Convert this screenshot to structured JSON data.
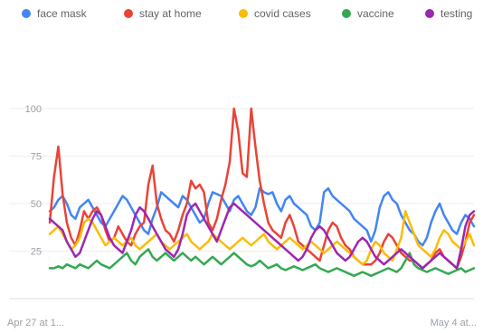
{
  "legend": {
    "items": [
      {
        "label": "face mask",
        "color": "#4285f4"
      },
      {
        "label": "stay at home",
        "color": "#ea4335"
      },
      {
        "label": "covid cases",
        "color": "#fbbc04"
      },
      {
        "label": "vaccine",
        "color": "#34a853"
      },
      {
        "label": "testing",
        "color": "#9c27b0"
      }
    ]
  },
  "chart_data": {
    "type": "line",
    "title": "",
    "xlabel": "",
    "ylabel": "",
    "ylim": [
      0,
      100
    ],
    "yticks": [
      "100",
      "75",
      "50",
      "25"
    ],
    "x_start_label": "Apr 27 at 1...",
    "x_end_label": "May 4 at...",
    "grid": true,
    "legend_position": "top",
    "series": [
      {
        "name": "face mask",
        "color": "#4285f4",
        "values": [
          46,
          48,
          52,
          54,
          50,
          44,
          42,
          48,
          50,
          52,
          48,
          44,
          40,
          38,
          42,
          46,
          50,
          54,
          52,
          48,
          44,
          40,
          36,
          34,
          42,
          48,
          56,
          54,
          52,
          50,
          48,
          54,
          52,
          48,
          44,
          40,
          42,
          50,
          56,
          55,
          54,
          50,
          46,
          52,
          54,
          50,
          46,
          44,
          48,
          58,
          56,
          55,
          56,
          50,
          46,
          52,
          54,
          50,
          48,
          46,
          44,
          38,
          36,
          40,
          56,
          58,
          54,
          52,
          50,
          48,
          46,
          42,
          40,
          38,
          36,
          30,
          36,
          48,
          54,
          56,
          52,
          50,
          44,
          40,
          36,
          34,
          30,
          28,
          32,
          40,
          46,
          50,
          44,
          40,
          36,
          34,
          40,
          44,
          42,
          38
        ]
      },
      {
        "name": "stay at home",
        "color": "#ea4335",
        "values": [
          40,
          64,
          80,
          55,
          40,
          32,
          28,
          36,
          46,
          42,
          46,
          48,
          44,
          36,
          30,
          32,
          38,
          34,
          30,
          28,
          34,
          38,
          40,
          60,
          70,
          50,
          42,
          36,
          34,
          30,
          36,
          44,
          50,
          62,
          58,
          60,
          56,
          40,
          36,
          42,
          52,
          60,
          72,
          100,
          88,
          66,
          64,
          100,
          80,
          62,
          50,
          40,
          36,
          34,
          32,
          40,
          44,
          38,
          30,
          28,
          26,
          24,
          22,
          20,
          28,
          36,
          40,
          38,
          32,
          28,
          26,
          22,
          20,
          18,
          18,
          18,
          20,
          24,
          30,
          34,
          32,
          28,
          24,
          22,
          20,
          20,
          18,
          16,
          18,
          20,
          24,
          26,
          22,
          20,
          18,
          16,
          22,
          30,
          40,
          44
        ]
      },
      {
        "name": "covid cases",
        "color": "#fbbc04",
        "values": [
          34,
          36,
          38,
          34,
          30,
          26,
          28,
          32,
          40,
          42,
          40,
          36,
          32,
          28,
          30,
          32,
          30,
          28,
          30,
          32,
          28,
          26,
          28,
          30,
          32,
          34,
          30,
          28,
          26,
          28,
          30,
          32,
          34,
          30,
          28,
          26,
          28,
          30,
          34,
          32,
          30,
          28,
          26,
          28,
          30,
          32,
          30,
          28,
          30,
          32,
          34,
          30,
          28,
          26,
          28,
          30,
          32,
          30,
          28,
          26,
          28,
          30,
          28,
          26,
          24,
          26,
          28,
          30,
          28,
          26,
          24,
          22,
          20,
          18,
          20,
          26,
          30,
          28,
          24,
          22,
          20,
          26,
          32,
          46,
          40,
          34,
          28,
          26,
          24,
          22,
          26,
          32,
          36,
          34,
          30,
          28,
          26,
          30,
          34,
          28
        ]
      },
      {
        "name": "vaccine",
        "color": "#34a853",
        "values": [
          16,
          16,
          17,
          16,
          18,
          17,
          16,
          18,
          17,
          16,
          18,
          20,
          18,
          17,
          16,
          18,
          20,
          22,
          24,
          20,
          18,
          22,
          24,
          26,
          22,
          20,
          22,
          24,
          22,
          20,
          22,
          24,
          22,
          20,
          22,
          20,
          18,
          20,
          22,
          20,
          18,
          20,
          22,
          24,
          22,
          20,
          18,
          17,
          18,
          20,
          18,
          16,
          17,
          18,
          16,
          15,
          16,
          17,
          16,
          15,
          16,
          17,
          18,
          16,
          15,
          14,
          15,
          16,
          15,
          14,
          13,
          12,
          13,
          14,
          13,
          12,
          13,
          14,
          15,
          16,
          15,
          14,
          16,
          20,
          24,
          18,
          16,
          15,
          14,
          15,
          16,
          15,
          14,
          13,
          14,
          15,
          16,
          14,
          15,
          16
        ]
      },
      {
        "name": "testing",
        "color": "#9c27b0",
        "values": [
          42,
          40,
          38,
          36,
          30,
          26,
          22,
          24,
          30,
          36,
          42,
          46,
          44,
          38,
          32,
          28,
          26,
          24,
          30,
          36,
          44,
          48,
          46,
          42,
          38,
          34,
          30,
          26,
          24,
          22,
          26,
          34,
          44,
          48,
          50,
          46,
          42,
          38,
          34,
          30,
          36,
          42,
          48,
          50,
          48,
          46,
          44,
          42,
          40,
          38,
          36,
          34,
          32,
          30,
          28,
          26,
          24,
          22,
          20,
          22,
          26,
          32,
          36,
          38,
          36,
          32,
          28,
          24,
          22,
          20,
          22,
          26,
          30,
          32,
          30,
          26,
          22,
          20,
          18,
          20,
          22,
          24,
          26,
          24,
          22,
          20,
          18,
          16,
          18,
          20,
          22,
          24,
          22,
          20,
          18,
          16,
          26,
          38,
          44,
          46
        ]
      }
    ]
  }
}
